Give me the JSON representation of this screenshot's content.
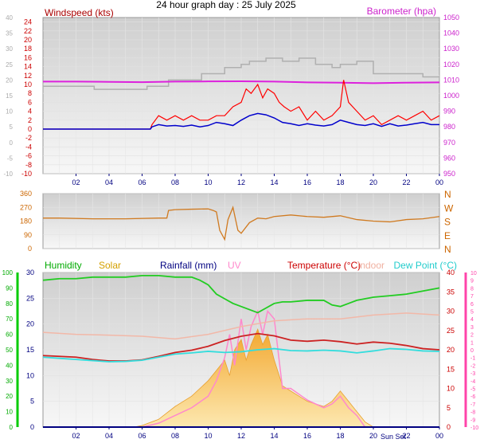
{
  "title": "24 hour graph day : 25 July 2025",
  "x_ticks": [
    "02",
    "04",
    "06",
    "08",
    "10",
    "12",
    "14",
    "16",
    "18",
    "20",
    "22",
    "00"
  ],
  "sun_label": "Sun Set",
  "colors": {
    "background": "#ffffff",
    "plot_bg_top": "#cfcfcf",
    "plot_bg_bottom": "#f7f7f7",
    "wind": "#ff0000",
    "wind_avg": "#0000cc",
    "baro": "#dd22dd",
    "gust_grey": "#b0b0b0",
    "direction": "#d07a20",
    "humidity": "#22cc22",
    "solar": "#f5b840",
    "rain": "#000080",
    "uv": "#ff88cc",
    "temperature": "#cc2222",
    "indoor": "#f2b8a8",
    "dew": "#33dddd",
    "axis_green": "#00cc00",
    "axis_pink": "#ff44aa"
  },
  "chart_data": [
    {
      "type": "line",
      "panel": "wind_baro",
      "labels": {
        "left": "Windspeed (kts)",
        "right": "Barometer (hpa)"
      },
      "left_axis": {
        "ylim": [
          -10,
          25
        ],
        "ticks": [
          24,
          22,
          20,
          18,
          16,
          14,
          12,
          10,
          8,
          6,
          4,
          2,
          0,
          -2,
          -4,
          -6,
          -8,
          -10
        ]
      },
      "left_axis_light": {
        "ylim": [
          -10,
          40
        ],
        "ticks": [
          40,
          35,
          30,
          25,
          20,
          15,
          10,
          5,
          0,
          -5,
          -10
        ]
      },
      "right_axis": {
        "ylim": [
          950,
          1050
        ],
        "ticks": [
          1050,
          1040,
          1030,
          1020,
          1010,
          1000,
          990,
          980,
          970,
          960,
          950
        ]
      },
      "x_hours_range": [
        0,
        24
      ],
      "series": [
        {
          "key": "gust_grey",
          "axis": "left_axis_light",
          "x": [
            0,
            3,
            3.1,
            6.2,
            6.3,
            7.5,
            7.6,
            9.5,
            9.6,
            10,
            11,
            11,
            12,
            12.5,
            13.5,
            14.2,
            14.5,
            15,
            15.5,
            16,
            16.5,
            17.2,
            17.5,
            18,
            19,
            19.5,
            20,
            20,
            22.5,
            23,
            24
          ],
          "y": [
            18,
            18,
            17,
            17,
            18,
            18,
            20,
            20,
            22,
            22,
            23,
            24,
            25,
            26,
            27,
            27,
            26,
            26,
            27,
            27,
            25,
            25,
            24,
            25,
            26,
            26,
            25,
            22,
            22,
            21,
            21
          ]
        },
        {
          "key": "baro",
          "axis": "right_axis",
          "x": [
            0,
            2,
            4,
            6,
            8,
            10,
            12,
            14,
            16,
            18,
            20,
            22,
            24
          ],
          "y": [
            1009,
            1009,
            1008.8,
            1008.6,
            1009,
            1009.1,
            1009.2,
            1009,
            1008.5,
            1008.3,
            1008,
            1008.3,
            1008.5
          ]
        },
        {
          "key": "wind",
          "axis": "left_axis",
          "x": [
            0,
            6.5,
            6.6,
            7,
            7.5,
            8,
            8.5,
            9,
            9.5,
            10,
            10.5,
            11,
            11.5,
            12,
            12.3,
            12.6,
            13,
            13.3,
            13.6,
            14,
            14.3,
            14.6,
            15,
            15.5,
            16,
            16.5,
            17,
            17.5,
            18,
            18.2,
            18.5,
            19,
            19.5,
            20,
            20.5,
            21,
            21.5,
            22,
            22.5,
            23,
            23.5,
            24
          ],
          "y": [
            0,
            0,
            1,
            3,
            2,
            3,
            2,
            3,
            2,
            2,
            3,
            3,
            5,
            6,
            9,
            8,
            10,
            7,
            9,
            8,
            6,
            5,
            4,
            5,
            2,
            4,
            2,
            3,
            5,
            11,
            6,
            4,
            2,
            3,
            1,
            2,
            3,
            2,
            3,
            4,
            2,
            3
          ]
        },
        {
          "key": "wind_avg",
          "axis": "left_axis",
          "x": [
            0,
            6.5,
            6.6,
            7,
            7.5,
            8,
            8.5,
            9,
            9.5,
            10,
            10.5,
            11,
            11.5,
            12,
            12.5,
            13,
            13.5,
            14,
            14.5,
            15,
            15.5,
            16,
            16.5,
            17,
            17.5,
            18,
            18.5,
            19,
            19.5,
            20,
            20.5,
            21,
            21.5,
            22,
            22.5,
            23,
            23.5,
            24
          ],
          "y": [
            0,
            0,
            0.5,
            1,
            0.7,
            0.8,
            0.6,
            0.9,
            0.5,
            0.8,
            1.5,
            1.2,
            0.8,
            2,
            3,
            3.5,
            3.2,
            2.5,
            1.5,
            1.2,
            0.8,
            1.2,
            0.9,
            0.7,
            1,
            2,
            1.5,
            1,
            0.8,
            1.2,
            0.6,
            1.2,
            0.7,
            0.9,
            1.2,
            1.5,
            1,
            1
          ]
        }
      ]
    },
    {
      "type": "line",
      "panel": "direction",
      "left_axis": {
        "ylim": [
          0,
          360
        ],
        "ticks": [
          360,
          270,
          180,
          90,
          0
        ]
      },
      "right_labels": [
        "N",
        "W",
        "S",
        "E",
        "N"
      ],
      "x_hours_range": [
        0,
        24
      ],
      "series": [
        {
          "key": "direction",
          "x": [
            0,
            1,
            3,
            5,
            7,
            7.5,
            7.6,
            8,
            9,
            10,
            10.3,
            10.5,
            10.7,
            11,
            11.2,
            11.5,
            11.8,
            12,
            12.5,
            13,
            13.5,
            14,
            15,
            16,
            17,
            18,
            19,
            20,
            21,
            22,
            23,
            24
          ],
          "y": [
            200,
            200,
            195,
            195,
            200,
            200,
            250,
            255,
            258,
            260,
            250,
            240,
            120,
            60,
            190,
            270,
            120,
            100,
            170,
            200,
            195,
            210,
            220,
            210,
            205,
            215,
            190,
            180,
            175,
            190,
            195,
            210
          ]
        }
      ]
    },
    {
      "type": "area",
      "panel": "climate",
      "labels": {
        "humidity": "Humidity",
        "solar": "Solar",
        "rain": "Rainfall (mm)",
        "uv": "UV",
        "temperature": "Temperature (°C)",
        "indoor": "Indoor",
        "dew": "Dew Point (°C)"
      },
      "far_left_axis": {
        "ylim": [
          0,
          100
        ],
        "ticks": [
          100,
          90,
          80,
          70,
          60,
          50,
          40,
          30,
          20,
          10,
          0
        ]
      },
      "left_axis": {
        "ylim": [
          0,
          30
        ],
        "ticks": [
          30,
          25,
          20,
          15,
          10,
          5,
          0
        ]
      },
      "right_axis": {
        "ylim": [
          0,
          40
        ],
        "ticks": [
          40,
          35,
          30,
          25,
          20,
          15,
          10,
          5,
          0
        ]
      },
      "far_right_axis": {
        "ylim": [
          -10,
          10
        ],
        "ticks": [
          10,
          9,
          8,
          7,
          6,
          5,
          4,
          3,
          2,
          1,
          0,
          -1,
          -2,
          -3,
          -4,
          -5,
          -6,
          -7,
          -8,
          -9,
          -10
        ]
      },
      "x_hours_range": [
        0,
        24
      ],
      "series": [
        {
          "key": "humidity",
          "axis": "far_left_axis",
          "x": [
            0,
            1,
            2,
            3,
            4,
            5,
            6,
            7,
            8,
            9,
            9.5,
            10,
            10.5,
            11,
            11.5,
            12,
            12.5,
            13,
            13.5,
            14,
            14.5,
            15,
            16,
            17,
            17.5,
            18,
            18.5,
            19,
            20,
            21,
            22,
            23,
            24
          ],
          "y": [
            95,
            96,
            96,
            97,
            97,
            97,
            98,
            98,
            97,
            97,
            95,
            92,
            86,
            83,
            80,
            78,
            76,
            74,
            77,
            80,
            81,
            81,
            82,
            82,
            79,
            78,
            80,
            82,
            84,
            85,
            86,
            88,
            90
          ]
        },
        {
          "key": "temperature",
          "axis": "right_axis",
          "x": [
            0,
            1,
            2,
            3,
            4,
            5,
            6,
            7,
            8,
            9,
            10,
            11,
            12,
            13,
            14,
            15,
            16,
            17,
            18,
            19,
            20,
            21,
            22,
            23,
            24
          ],
          "y": [
            18.5,
            18.3,
            18.1,
            17.5,
            17.1,
            17.1,
            17.4,
            18.3,
            19.3,
            19.9,
            20.9,
            22.4,
            23.5,
            24.2,
            23.6,
            22.5,
            22.2,
            22.5,
            22.1,
            21.5,
            22,
            21.7,
            21.1,
            20.3,
            20
          ]
        },
        {
          "key": "indoor",
          "axis": "right_axis",
          "x": [
            0,
            2,
            4,
            6,
            8,
            10,
            12,
            14,
            16,
            18,
            20,
            22,
            24
          ],
          "y": [
            24.5,
            24,
            23.8,
            23.5,
            22.8,
            24,
            26,
            27.5,
            28,
            28,
            29,
            29.5,
            29
          ]
        },
        {
          "key": "dew",
          "axis": "right_axis",
          "x": [
            0,
            1,
            2,
            3,
            4,
            5,
            6,
            7,
            8,
            9,
            10,
            11,
            12,
            13,
            14,
            15,
            16,
            17,
            18,
            19,
            20,
            21,
            22,
            23,
            24
          ],
          "y": [
            18.1,
            17.8,
            17.5,
            17.2,
            16.9,
            17,
            17.3,
            18.1,
            18.9,
            19.2,
            19.6,
            19.3,
            19.5,
            20,
            20.3,
            19.8,
            19.7,
            19.9,
            19.7,
            19.2,
            19.7,
            20.3,
            20.1,
            19.7,
            19.6
          ]
        },
        {
          "key": "solar",
          "axis": "left_axis",
          "x": [
            0,
            5.5,
            6,
            7,
            8,
            9,
            10,
            10.5,
            11,
            11.3,
            11.6,
            12,
            12.3,
            12.6,
            13,
            13.3,
            13.6,
            14,
            14.5,
            15,
            16,
            17,
            17.5,
            18,
            18.5,
            19,
            19.5,
            20,
            24
          ],
          "y": [
            0,
            0,
            0.3,
            1.5,
            4,
            6,
            9,
            11,
            13,
            10,
            15,
            17,
            13,
            16,
            19,
            16,
            18,
            13,
            8,
            7,
            5,
            4,
            5,
            7,
            5,
            3,
            1,
            0,
            0
          ]
        },
        {
          "key": "uv",
          "axis": "far_right_axis",
          "x": [
            0,
            6,
            7,
            8,
            9,
            10,
            10.5,
            11,
            11.3,
            11.6,
            12,
            12.3,
            12.6,
            13,
            13.3,
            13.6,
            14,
            14.5,
            15,
            16,
            17,
            17.5,
            18,
            18.5,
            19,
            19.5,
            20,
            24
          ],
          "y": [
            -10,
            -10,
            -9.5,
            -8.5,
            -7.5,
            -6,
            -4,
            -1,
            2,
            -2,
            4,
            0,
            3,
            5,
            2,
            5,
            4,
            -5,
            -5,
            -6.5,
            -7.5,
            -7,
            -6,
            -7.5,
            -8.5,
            -10,
            -10,
            -10
          ]
        },
        {
          "key": "rain",
          "axis": "left_axis",
          "x": [
            0,
            24
          ],
          "y": [
            0,
            0
          ]
        }
      ]
    }
  ]
}
